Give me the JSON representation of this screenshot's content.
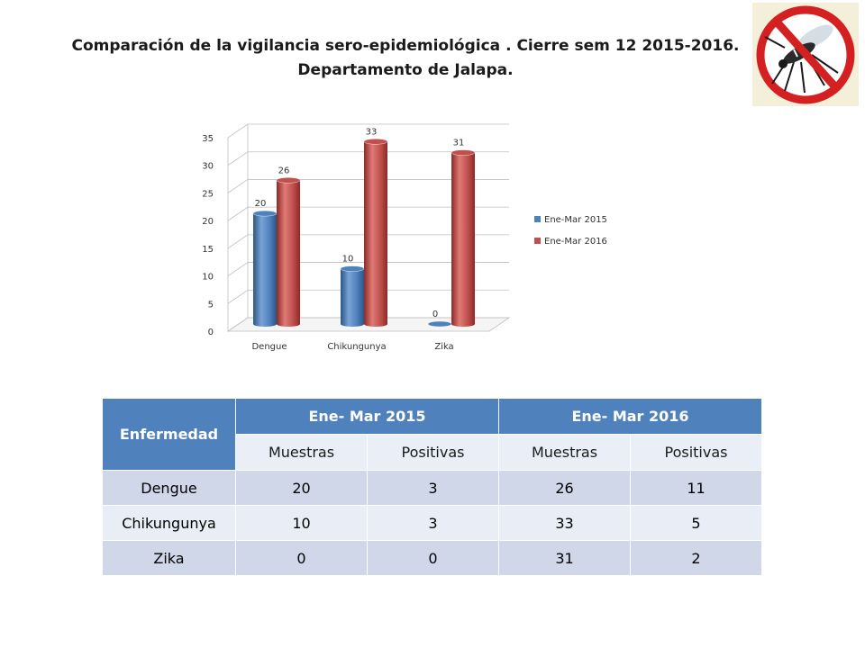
{
  "title": {
    "line1": "Comparación de la vigilancia sero-epidemiológica . Cierre sem 12 2015-2016.",
    "line2": "Departamento de Jalapa."
  },
  "logo": {
    "icon": "no-mosquito-icon"
  },
  "colors": {
    "series2015": "#4f81bd",
    "series2016": "#c0504d",
    "header": "#4f81bd"
  },
  "chart_data": {
    "type": "bar",
    "categories": [
      "Dengue",
      "Chikungunya",
      "Zika"
    ],
    "series": [
      {
        "name": "Ene-Mar 2015",
        "values": [
          20,
          10,
          0
        ]
      },
      {
        "name": "Ene-Mar 2016",
        "values": [
          26,
          33,
          31
        ]
      }
    ],
    "ylim": [
      0,
      35
    ],
    "yticks": [
      "0",
      "5",
      "10",
      "15",
      "20",
      "25",
      "30",
      "35"
    ],
    "legend_position": "right",
    "grid": true
  },
  "table": {
    "header_first": "Enfermedad",
    "group_headers": [
      "Ene- Mar 2015",
      "Ene- Mar 2016"
    ],
    "sub_headers": [
      "Muestras",
      "Positivas",
      "Muestras",
      "Positivas"
    ],
    "rows": [
      {
        "name": "Dengue",
        "values": [
          "20",
          "3",
          "26",
          "11"
        ]
      },
      {
        "name": "Chikungunya",
        "values": [
          "10",
          "3",
          "33",
          "5"
        ]
      },
      {
        "name": "Zika",
        "values": [
          "0",
          "0",
          "31",
          "2"
        ]
      }
    ]
  }
}
